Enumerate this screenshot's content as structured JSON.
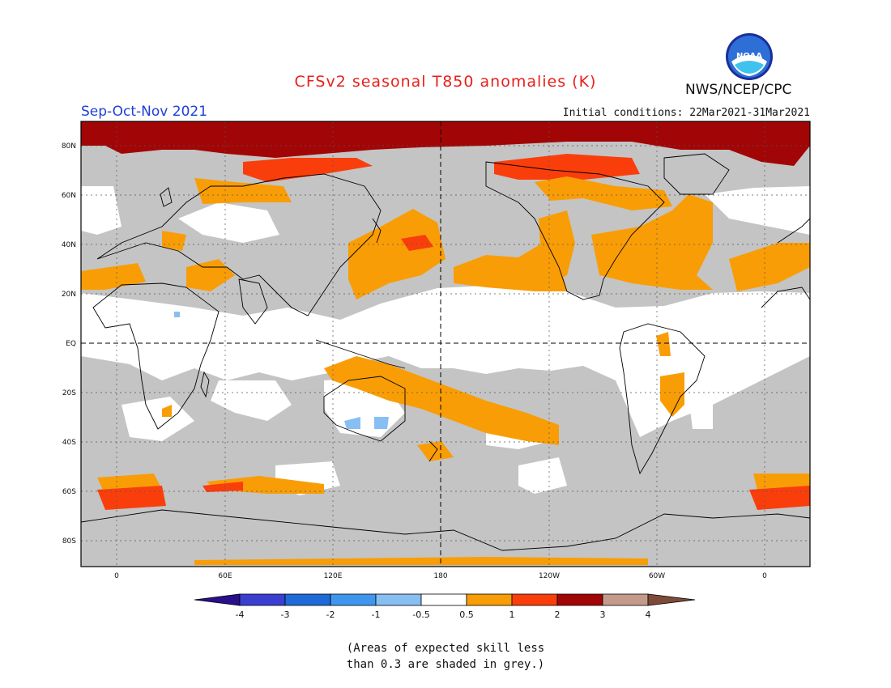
{
  "title": "CFSv2 seasonal T850 anomalies (K)",
  "season": "Sep-Oct-Nov 2021",
  "initial_conditions": "Initial conditions: 22Mar2021-31Mar2021",
  "agency": "NWS/NCEP/CPC",
  "logo_text": "NOAA",
  "map": {
    "projection": "equirectangular",
    "lon_range": [
      -30,
      390
    ],
    "lat_range": [
      -90,
      90
    ],
    "lat_labels": [
      "80N",
      "60N",
      "40N",
      "20N",
      "EQ",
      "20S",
      "40S",
      "60S",
      "80S"
    ],
    "lon_labels": [
      "0",
      "60E",
      "120E",
      "180",
      "120W",
      "60W",
      "0"
    ]
  },
  "colorbar": {
    "labels": [
      "-4",
      "-3",
      "-2",
      "-1",
      "-0.5",
      "0.5",
      "1",
      "2",
      "3",
      "4"
    ],
    "colors": [
      "#2a0f8c",
      "#3b3fd0",
      "#1e6ad8",
      "#3f96ee",
      "#88bff2",
      "#ffffff",
      "#f99d06",
      "#f93e0c",
      "#a20505",
      "#c49b8b",
      "#7e4b38"
    ]
  },
  "palette": {
    "grey": "#c4c4c4",
    "white": "#ffffff",
    "orange": "#f99d06",
    "red_orange": "#f93e0c",
    "dark_red": "#a20505",
    "light_blue": "#88bff2"
  },
  "note": {
    "line1": "(Areas of expected skill less",
    "line2": "than 0.3 are shaded in grey.)"
  }
}
